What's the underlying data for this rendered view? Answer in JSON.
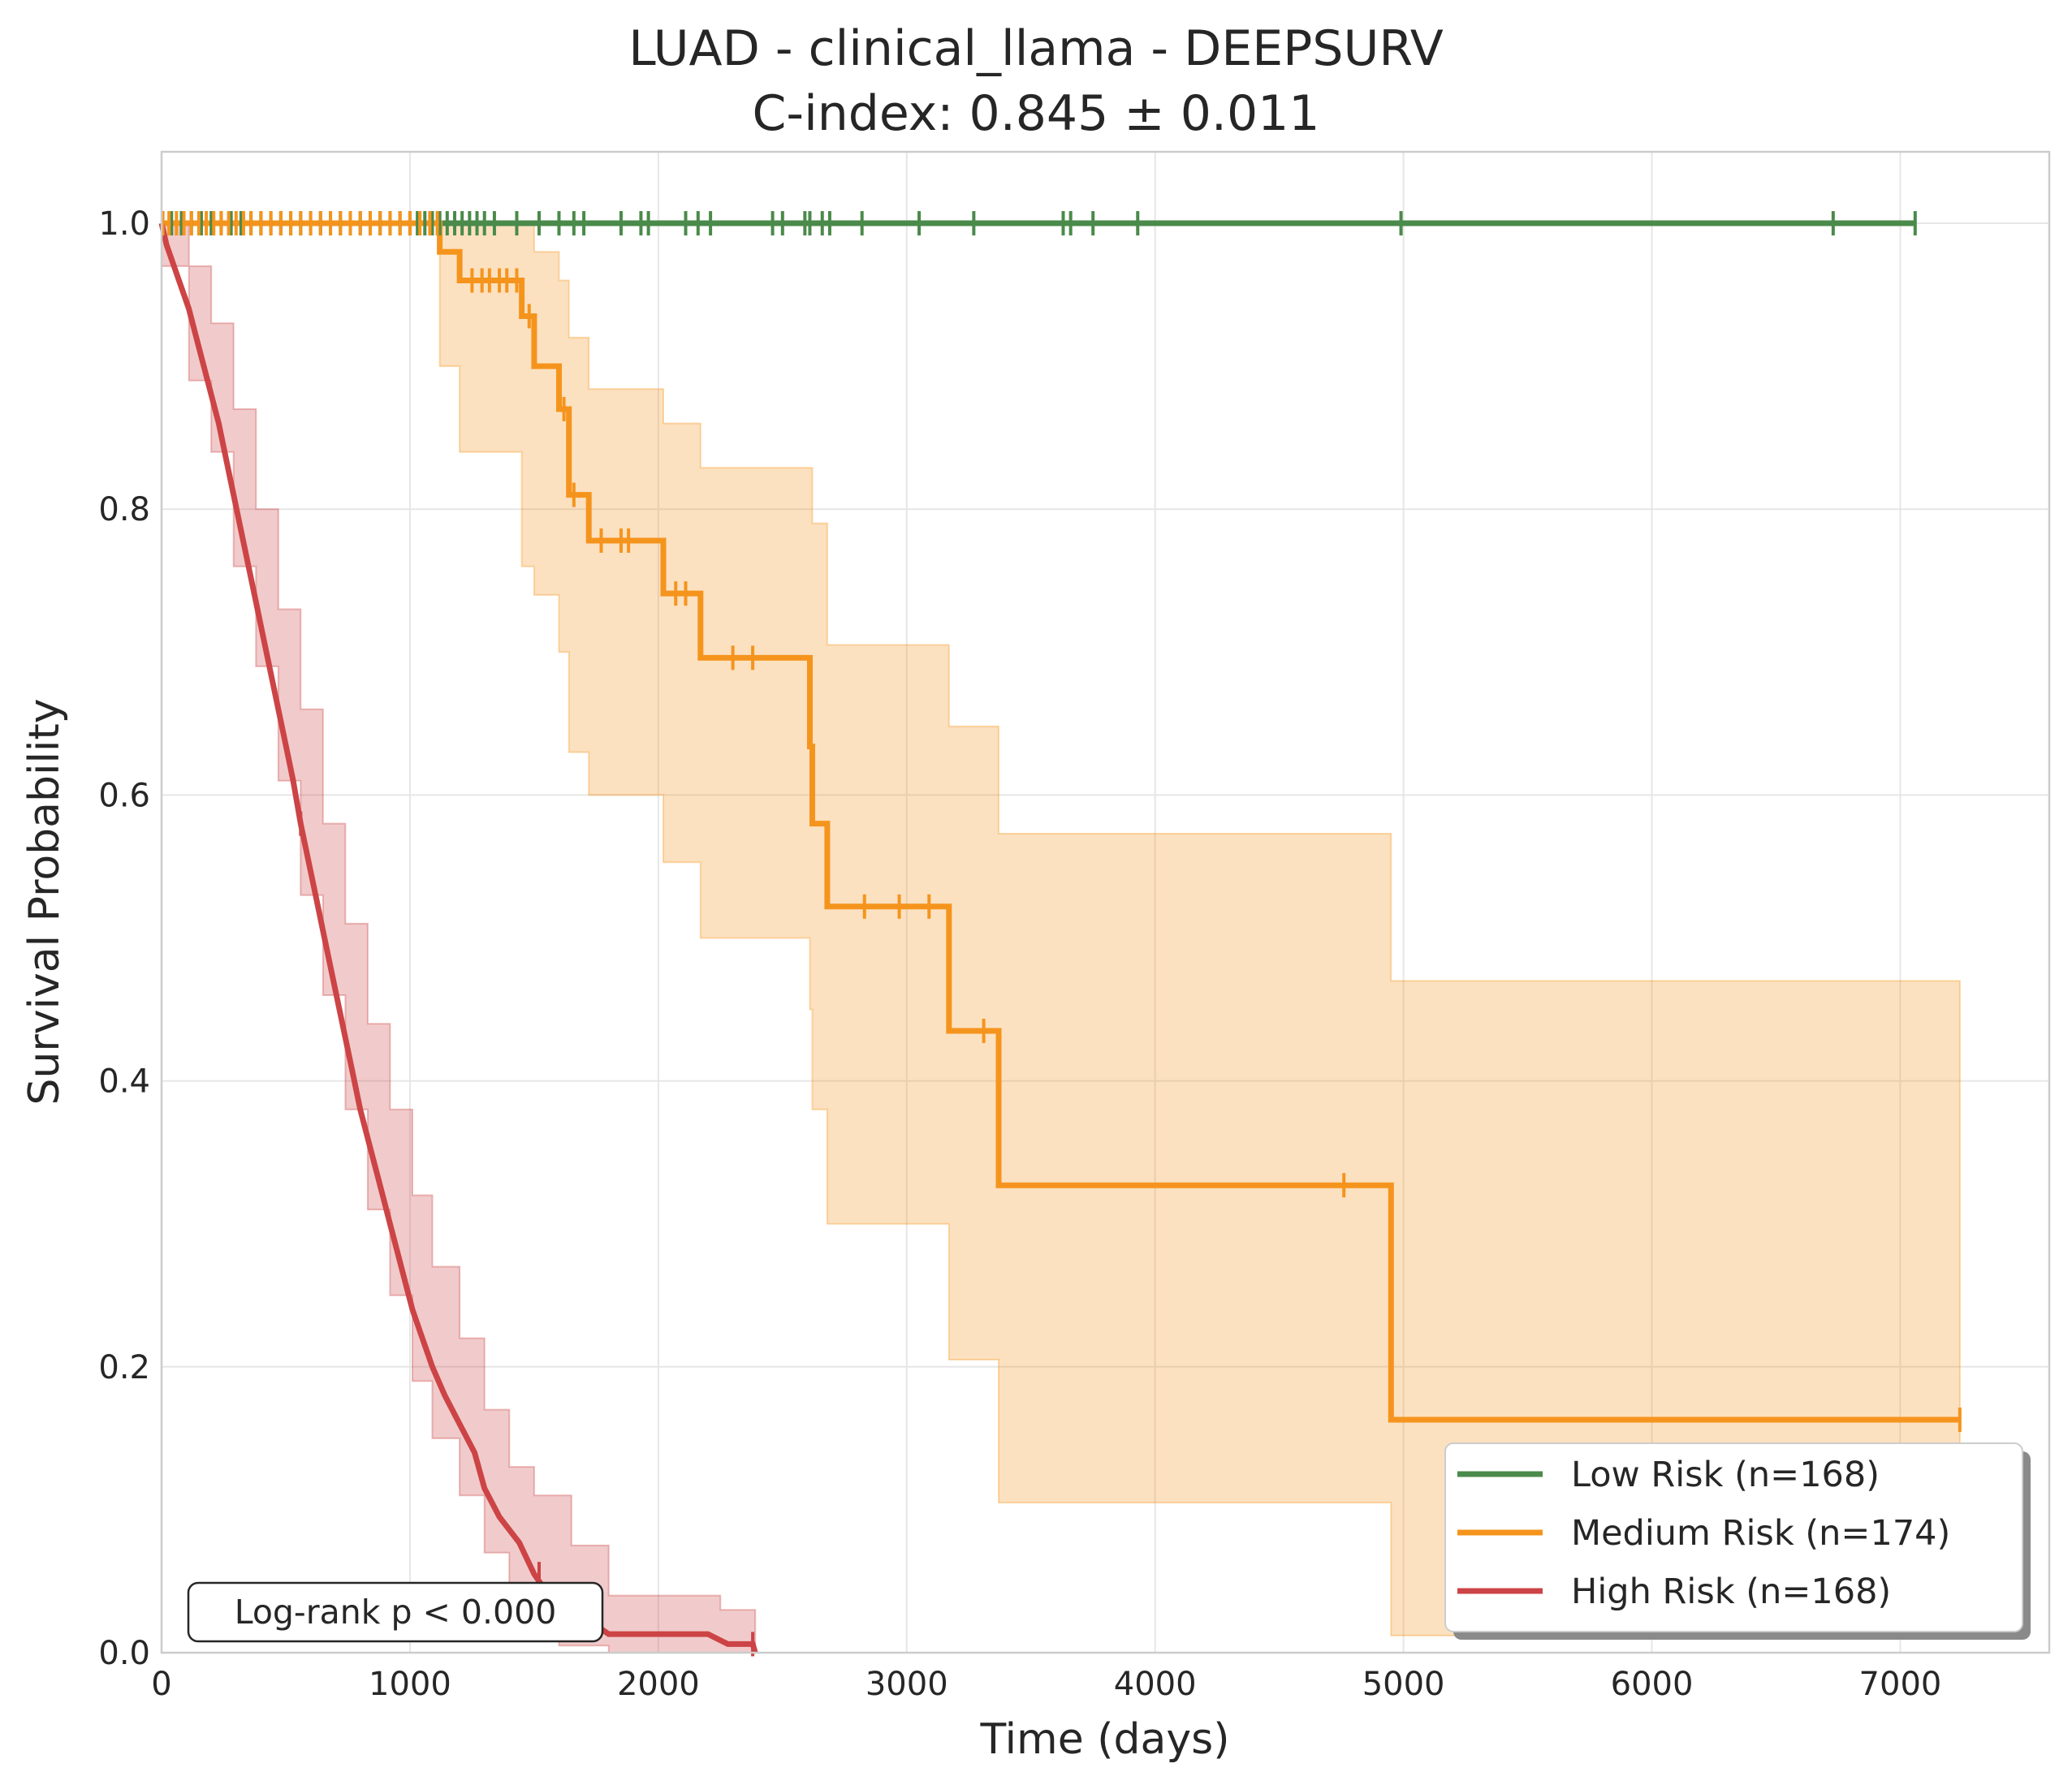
{
  "chart_data": {
    "type": "line",
    "title": "LUAD - clinical_llama - DEEPSURV",
    "subtitle": "C-index: 0.845 ± 0.011",
    "xlabel": "Time (days)",
    "ylabel": "Survival Probability",
    "xlim": [
      0,
      7600
    ],
    "ylim": [
      0,
      1.05
    ],
    "xticks": [
      0,
      1000,
      2000,
      3000,
      4000,
      5000,
      6000,
      7000
    ],
    "yticks": [
      0.0,
      0.2,
      0.4,
      0.6,
      0.8,
      1.0
    ],
    "xtick_labels": [
      "0",
      "1000",
      "2000",
      "3000",
      "4000",
      "5000",
      "6000",
      "7000"
    ],
    "ytick_labels": [
      "0.0",
      "0.2",
      "0.4",
      "0.6",
      "0.8",
      "1.0"
    ],
    "grid": true,
    "legend_position": "lower-right",
    "annotation": "Log-rank p < 0.000",
    "series": [
      {
        "name": "Low Risk (n=168)",
        "color": "#4a8a4a",
        "steps": [
          [
            0,
            1.0
          ],
          [
            7060,
            1.0
          ]
        ],
        "ci_lower": [
          [
            0,
            1.0
          ],
          [
            7060,
            1.0
          ]
        ],
        "ci_upper": [
          [
            0,
            1.0
          ],
          [
            7060,
            1.0
          ]
        ],
        "censors": [
          5,
          40,
          80,
          120,
          160,
          200,
          240,
          280,
          320,
          360,
          400,
          440,
          480,
          520,
          560,
          600,
          640,
          680,
          720,
          760,
          800,
          840,
          880,
          920,
          960,
          1000,
          1030,
          1060,
          1090,
          1120,
          1150,
          1180,
          1210,
          1240,
          1270,
          1300,
          1340,
          1430,
          1520,
          1600,
          1660,
          1700,
          1850,
          1930,
          1960,
          2110,
          2160,
          2210,
          2460,
          2500,
          2590,
          2610,
          2660,
          2690,
          2820,
          3050,
          3270,
          3630,
          3660,
          3750,
          3930,
          4990,
          6730,
          7060
        ]
      },
      {
        "name": "Medium Risk (n=174)",
        "color": "#f5941d",
        "steps": [
          [
            0,
            1.0
          ],
          [
            1120,
            1.0
          ],
          [
            1120,
            0.98
          ],
          [
            1200,
            0.98
          ],
          [
            1200,
            0.96
          ],
          [
            1450,
            0.96
          ],
          [
            1450,
            0.935
          ],
          [
            1500,
            0.935
          ],
          [
            1500,
            0.9
          ],
          [
            1600,
            0.9
          ],
          [
            1600,
            0.87
          ],
          [
            1640,
            0.87
          ],
          [
            1640,
            0.81
          ],
          [
            1720,
            0.81
          ],
          [
            1720,
            0.778
          ],
          [
            2020,
            0.778
          ],
          [
            2020,
            0.741
          ],
          [
            2170,
            0.741
          ],
          [
            2170,
            0.696
          ],
          [
            2610,
            0.696
          ],
          [
            2610,
            0.634
          ],
          [
            2620,
            0.634
          ],
          [
            2620,
            0.58
          ],
          [
            2680,
            0.58
          ],
          [
            2680,
            0.522
          ],
          [
            3170,
            0.522
          ],
          [
            3170,
            0.435
          ],
          [
            3370,
            0.435
          ],
          [
            3370,
            0.327
          ],
          [
            4950,
            0.327
          ],
          [
            4950,
            0.163
          ],
          [
            7240,
            0.163
          ]
        ],
        "ci_lower": [
          [
            1120,
            0.9
          ],
          [
            1200,
            0.84
          ],
          [
            1450,
            0.76
          ],
          [
            1500,
            0.74
          ],
          [
            1600,
            0.7
          ],
          [
            1640,
            0.63
          ],
          [
            1720,
            0.6
          ],
          [
            2020,
            0.553
          ],
          [
            2170,
            0.5
          ],
          [
            2610,
            0.45
          ],
          [
            2620,
            0.38
          ],
          [
            2680,
            0.3
          ],
          [
            3170,
            0.205
          ],
          [
            3370,
            0.105
          ],
          [
            4950,
            0.012
          ],
          [
            7240,
            0.012
          ]
        ],
        "ci_upper": [
          [
            1120,
            1.0
          ],
          [
            1450,
            1.0
          ],
          [
            1500,
            0.98
          ],
          [
            1600,
            0.96
          ],
          [
            1640,
            0.92
          ],
          [
            1720,
            0.884
          ],
          [
            2020,
            0.86
          ],
          [
            2170,
            0.829
          ],
          [
            2610,
            0.829
          ],
          [
            2620,
            0.79
          ],
          [
            2680,
            0.705
          ],
          [
            3170,
            0.648
          ],
          [
            3370,
            0.573
          ],
          [
            4950,
            0.47
          ],
          [
            7240,
            0.47
          ]
        ],
        "censors": [
          5,
          30,
          60,
          90,
          120,
          150,
          180,
          210,
          240,
          270,
          300,
          330,
          360,
          400,
          440,
          480,
          520,
          560,
          600,
          640,
          680,
          720,
          760,
          800,
          840,
          880,
          920,
          960,
          1000,
          1040,
          1080,
          1110,
          1250,
          1290,
          1320,
          1360,
          1390,
          1430,
          1480,
          1620,
          1660,
          1770,
          1850,
          1880,
          2070,
          2110,
          2300,
          2380,
          2830,
          2970,
          3090,
          3310,
          4760,
          7240
        ]
      },
      {
        "name": "High Risk (n=168)",
        "color": "#cc4446",
        "steps": [
          [
            0,
            1.0
          ],
          [
            20,
            0.985
          ],
          [
            50,
            0.97
          ],
          [
            80,
            0.955
          ],
          [
            110,
            0.94
          ],
          [
            140,
            0.92
          ],
          [
            170,
            0.9
          ],
          [
            200,
            0.88
          ],
          [
            230,
            0.86
          ],
          [
            260,
            0.835
          ],
          [
            290,
            0.81
          ],
          [
            320,
            0.785
          ],
          [
            350,
            0.76
          ],
          [
            380,
            0.735
          ],
          [
            410,
            0.71
          ],
          [
            440,
            0.685
          ],
          [
            470,
            0.66
          ],
          [
            500,
            0.635
          ],
          [
            530,
            0.61
          ],
          [
            560,
            0.58
          ],
          [
            590,
            0.555
          ],
          [
            620,
            0.53
          ],
          [
            650,
            0.505
          ],
          [
            680,
            0.48
          ],
          [
            710,
            0.455
          ],
          [
            740,
            0.43
          ],
          [
            770,
            0.405
          ],
          [
            800,
            0.38
          ],
          [
            830,
            0.36
          ],
          [
            860,
            0.34
          ],
          [
            890,
            0.32
          ],
          [
            920,
            0.3
          ],
          [
            950,
            0.28
          ],
          [
            980,
            0.26
          ],
          [
            1010,
            0.24
          ],
          [
            1050,
            0.22
          ],
          [
            1090,
            0.2
          ],
          [
            1140,
            0.18
          ],
          [
            1200,
            0.16
          ],
          [
            1260,
            0.14
          ],
          [
            1300,
            0.115
          ],
          [
            1360,
            0.095
          ],
          [
            1440,
            0.077
          ],
          [
            1500,
            0.055
          ],
          [
            1560,
            0.04
          ],
          [
            1700,
            0.025
          ],
          [
            1800,
            0.013
          ],
          [
            2200,
            0.013
          ],
          [
            2280,
            0.006
          ],
          [
            2380,
            0.006
          ],
          [
            2390,
            0.0
          ]
        ],
        "ci_lower": [
          [
            0,
            0.97
          ],
          [
            110,
            0.89
          ],
          [
            200,
            0.84
          ],
          [
            290,
            0.76
          ],
          [
            380,
            0.69
          ],
          [
            470,
            0.61
          ],
          [
            560,
            0.53
          ],
          [
            650,
            0.46
          ],
          [
            740,
            0.38
          ],
          [
            830,
            0.31
          ],
          [
            920,
            0.25
          ],
          [
            1010,
            0.19
          ],
          [
            1090,
            0.15
          ],
          [
            1200,
            0.11
          ],
          [
            1300,
            0.07
          ],
          [
            1400,
            0.04
          ],
          [
            1500,
            0.02
          ],
          [
            1600,
            0.005
          ],
          [
            1800,
            0.0
          ],
          [
            2390,
            0.0
          ]
        ],
        "ci_upper": [
          [
            0,
            1.0
          ],
          [
            110,
            0.97
          ],
          [
            200,
            0.93
          ],
          [
            290,
            0.87
          ],
          [
            380,
            0.8
          ],
          [
            470,
            0.73
          ],
          [
            560,
            0.66
          ],
          [
            650,
            0.58
          ],
          [
            740,
            0.51
          ],
          [
            830,
            0.44
          ],
          [
            920,
            0.38
          ],
          [
            1010,
            0.32
          ],
          [
            1090,
            0.27
          ],
          [
            1200,
            0.22
          ],
          [
            1300,
            0.17
          ],
          [
            1400,
            0.13
          ],
          [
            1500,
            0.11
          ],
          [
            1650,
            0.075
          ],
          [
            1800,
            0.04
          ],
          [
            2250,
            0.03
          ],
          [
            2390,
            0.03
          ]
        ],
        "censors": [
          560,
          1520,
          1580,
          2380
        ]
      }
    ]
  }
}
